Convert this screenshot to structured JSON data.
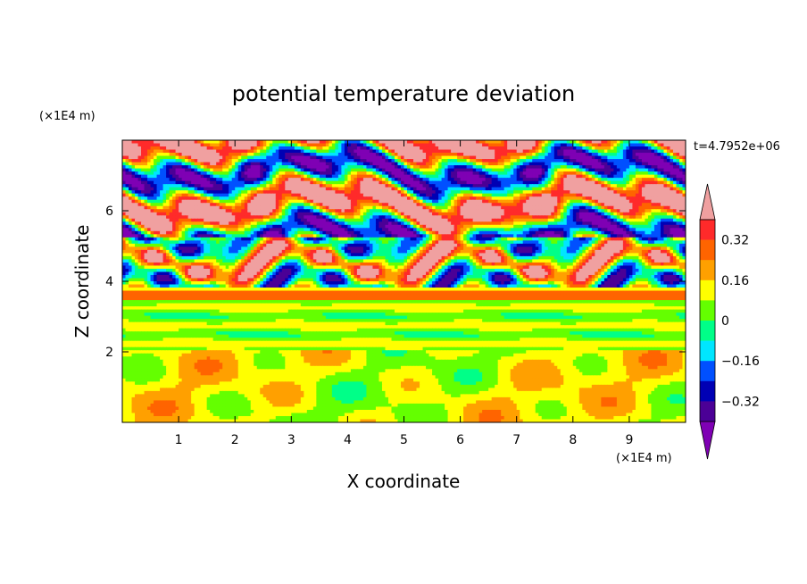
{
  "chart_data": {
    "type": "heatmap",
    "title": "potential temperature deviation",
    "xlabel": "X coordinate",
    "ylabel": "Z coordinate",
    "x_unit": "(×1E4 m)",
    "y_unit": "(×1E4 m)",
    "time_label": "t=4.7952e+06",
    "xlim": [
      0,
      10
    ],
    "ylim": [
      0,
      8
    ],
    "x_ticks": [
      "1",
      "2",
      "3",
      "4",
      "5",
      "6",
      "7",
      "8",
      "9"
    ],
    "y_ticks": [
      "2",
      "4",
      "6"
    ],
    "colorbar": {
      "levels": [
        -0.48,
        -0.4,
        -0.32,
        -0.24,
        -0.16,
        -0.08,
        0,
        0.08,
        0.16,
        0.24,
        0.32,
        0.4,
        0.48
      ],
      "tick_labels": [
        "0.32",
        "0.16",
        "0",
        "−0.16",
        "−0.32"
      ],
      "colors": [
        "#7f00b4",
        "#4b0096",
        "#0000b4",
        "#0050ff",
        "#00e6ff",
        "#00ff88",
        "#64ff00",
        "#ffff00",
        "#ffa000",
        "#ff6400",
        "#ff2a2a",
        "#f0a0a0"
      ],
      "extend": "both"
    }
  }
}
